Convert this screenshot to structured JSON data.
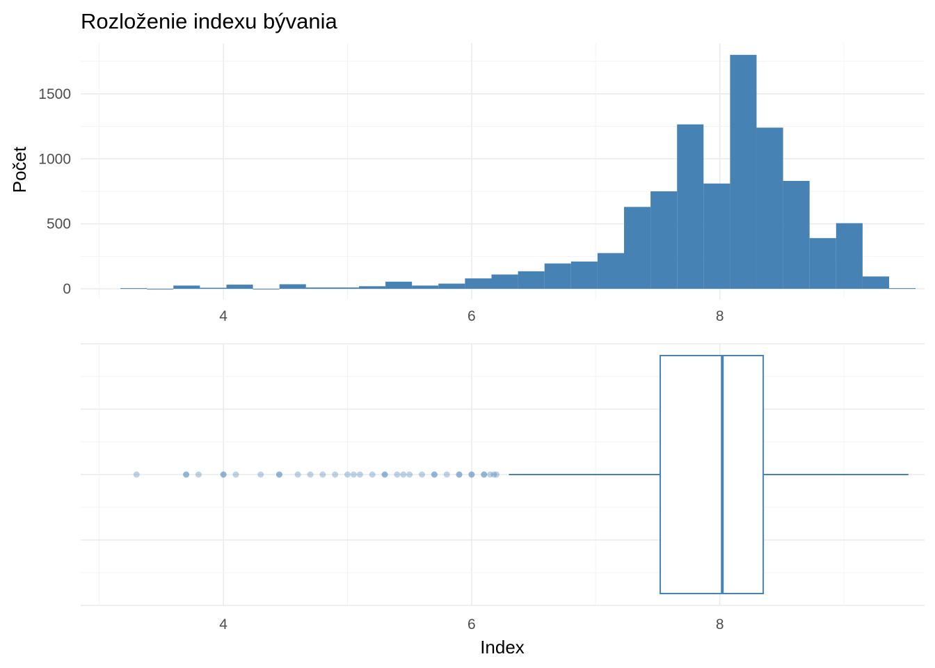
{
  "title": "Rozloženie indexu bývania",
  "colors": {
    "accent": "#4682b4",
    "grid": "#ebebeb",
    "tick_text": "#4d4d4d"
  },
  "chart_data": [
    {
      "type": "bar",
      "subtype": "histogram",
      "title": "Rozloženie indexu bývania",
      "xlabel": "",
      "ylabel": "Počet",
      "xlim": [
        2.85,
        9.65
      ],
      "ylim": [
        -80,
        1890
      ],
      "x_ticks": [
        4,
        6,
        8
      ],
      "x_tick_labels": [
        "4",
        "6",
        "8"
      ],
      "y_ticks": [
        0,
        500,
        1000,
        1500
      ],
      "y_tick_labels": [
        "0",
        "500",
        "1000",
        "1500"
      ],
      "grid": true,
      "bin_width": 0.2136,
      "bin_starts": [
        3.1699,
        3.3835,
        3.5971,
        3.8107,
        4.0243,
        4.2379,
        4.4515,
        4.6651,
        4.8787,
        5.0923,
        5.3059,
        5.5195,
        5.7331,
        5.9467,
        6.1603,
        6.3739,
        6.5875,
        6.8011,
        7.0147,
        7.2283,
        7.4419,
        7.6555,
        7.8691,
        8.0827,
        8.2963,
        8.5099,
        8.7235,
        8.9371,
        9.1507,
        9.3643
      ],
      "values": [
        5,
        0,
        25,
        8,
        32,
        0,
        35,
        10,
        10,
        20,
        55,
        25,
        40,
        80,
        110,
        135,
        195,
        210,
        275,
        630,
        750,
        1265,
        810,
        1800,
        1240,
        830,
        390,
        505,
        95,
        5
      ]
    },
    {
      "type": "boxplot",
      "xlabel": "Index",
      "ylabel": "",
      "xlim": [
        2.85,
        9.65
      ],
      "x_ticks": [
        4,
        6,
        8
      ],
      "x_tick_labels": [
        "4",
        "6",
        "8"
      ],
      "grid": true,
      "whisker_low": 6.3,
      "q1": 7.52,
      "median": 8.02,
      "q3": 8.35,
      "whisker_high": 9.52,
      "outliers": [
        3.3,
        3.7,
        3.7,
        3.8,
        4.0,
        4.0,
        4.1,
        4.3,
        4.45,
        4.45,
        4.6,
        4.7,
        4.8,
        4.9,
        5.0,
        5.05,
        5.1,
        5.2,
        5.3,
        5.3,
        5.4,
        5.45,
        5.5,
        5.6,
        5.7,
        5.7,
        5.8,
        5.9,
        5.9,
        6.0,
        6.0,
        6.1,
        6.1,
        6.15,
        6.18,
        6.2
      ]
    }
  ]
}
